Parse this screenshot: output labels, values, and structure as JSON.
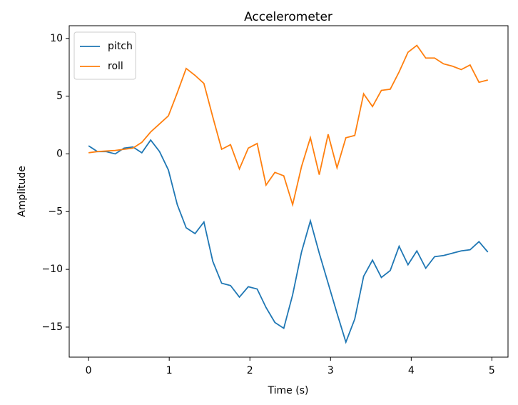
{
  "chart_data": {
    "type": "line",
    "title": "Accelerometer",
    "xlabel": "Time (s)",
    "ylabel": "Amplitude",
    "x": [
      0,
      0.11,
      0.22,
      0.33,
      0.44,
      0.55,
      0.66,
      0.77,
      0.88,
      0.99,
      1.1,
      1.21,
      1.32,
      1.43,
      1.54,
      1.65,
      1.76,
      1.87,
      1.98,
      2.09,
      2.2,
      2.31,
      2.42,
      2.53,
      2.64,
      2.75,
      2.86,
      2.97,
      3.08,
      3.19,
      3.3,
      3.41,
      3.52,
      3.63,
      3.74,
      3.85,
      3.96,
      4.07,
      4.18,
      4.29,
      4.4,
      4.51,
      4.62,
      4.73,
      4.84,
      4.95
    ],
    "series": [
      {
        "name": "pitch",
        "color": "#1f77b4",
        "values": [
          0.7,
          0.2,
          0.2,
          0.0,
          0.5,
          0.6,
          0.1,
          1.2,
          0.2,
          -1.4,
          -4.4,
          -6.4,
          -6.9,
          -5.9,
          -9.3,
          -11.2,
          -11.4,
          -12.4,
          -11.5,
          -11.7,
          -13.3,
          -14.6,
          -15.1,
          -12.2,
          -8.5,
          -5.8,
          -8.6,
          -11.2,
          -13.8,
          -16.3,
          -14.3,
          -10.6,
          -9.2,
          -10.7,
          -10.1,
          -8.0,
          -9.6,
          -8.4,
          -9.9,
          -8.9,
          -8.8,
          -8.6,
          -8.4,
          -8.3,
          -7.6,
          -8.5
        ]
      },
      {
        "name": "roll",
        "color": "#ff7f0e",
        "values": [
          0.1,
          0.2,
          0.25,
          0.3,
          0.4,
          0.5,
          1.0,
          1.9,
          2.6,
          3.3,
          5.3,
          7.4,
          6.8,
          6.1,
          3.2,
          0.4,
          0.8,
          -1.3,
          0.5,
          0.9,
          -2.7,
          -1.6,
          -1.9,
          -4.4,
          -1.1,
          1.4,
          -1.8,
          1.7,
          -1.2,
          1.4,
          1.6,
          5.2,
          4.1,
          5.5,
          5.6,
          7.1,
          8.8,
          9.4,
          8.3,
          8.3,
          7.8,
          7.6,
          7.3,
          7.7,
          6.2,
          6.4
        ]
      }
    ],
    "xlim": [
      -0.24,
      5.2
    ],
    "xticks": [
      0,
      1,
      2,
      3,
      4,
      5
    ],
    "ylim": [
      -17.6,
      11.1
    ],
    "yticks": [
      {
        "value": -15,
        "label": "−15"
      },
      {
        "value": -10,
        "label": "−10"
      },
      {
        "value": -5,
        "label": "−5"
      },
      0,
      5,
      10
    ],
    "legend": "upper left"
  }
}
